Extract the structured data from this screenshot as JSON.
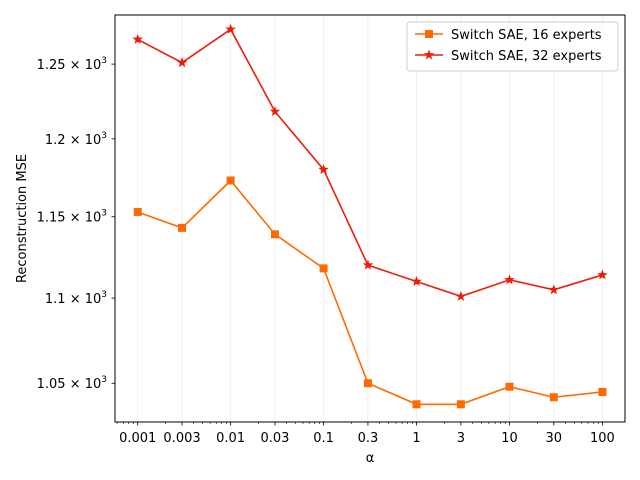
{
  "chart_data": {
    "type": "line",
    "xlabel": "α",
    "ylabel": "Reconstruction MSE",
    "x_scale": "log",
    "y_scale": "log",
    "xlim": [
      0.00057,
      175
    ],
    "ylim": [
      1028,
      1284
    ],
    "x": [
      0.001,
      0.003,
      0.01,
      0.03,
      0.1,
      0.3,
      1,
      3,
      10,
      30,
      100
    ],
    "x_tick_labels": [
      "0.001",
      "0.003",
      "0.01",
      "0.03",
      "0.1",
      "0.3",
      "1",
      "3",
      "10",
      "30",
      "100"
    ],
    "y_ticks": [
      {
        "value": 1050,
        "mantissa": "1.05",
        "base": "10",
        "exp": "3"
      },
      {
        "value": 1100,
        "mantissa": "1.1",
        "base": "10",
        "exp": "3"
      },
      {
        "value": 1150,
        "mantissa": "1.15",
        "base": "10",
        "exp": "3"
      },
      {
        "value": 1200,
        "mantissa": "1.2",
        "base": "10",
        "exp": "3"
      },
      {
        "value": 1250,
        "mantissa": "1.25",
        "base": "10",
        "exp": "3"
      }
    ],
    "times_sign": "×",
    "grid": "x-major",
    "legend_position": "top-right",
    "series": [
      {
        "name": "Switch SAE, 16 experts",
        "color": "#ff6a00",
        "marker": "square",
        "values": [
          1153,
          1143,
          1173,
          1139,
          1118,
          1050,
          1038,
          1038,
          1048,
          1042,
          1045
        ]
      },
      {
        "name": "Switch SAE, 32 experts",
        "color": "#ee1c0a",
        "marker": "star",
        "values": [
          1267,
          1251,
          1274,
          1218,
          1180,
          1120,
          1110,
          1101,
          1111,
          1105,
          1114
        ]
      }
    ]
  }
}
